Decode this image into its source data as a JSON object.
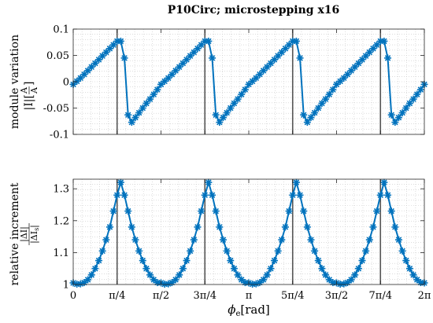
{
  "chart_data": [
    {
      "type": "line",
      "title": "P10Circ; microstepping x16",
      "ylabel": "module variation",
      "ylabel_formula": {
        "prefix": "|I|[",
        "numerator": "A",
        "denominator": "A",
        "suffix": "]"
      },
      "xlim": [
        0,
        6.2832
      ],
      "ylim": [
        -0.1,
        0.1
      ],
      "yticks": [
        {
          "value": -0.1,
          "label": "-0.1"
        },
        {
          "value": -0.05,
          "label": "-0.05"
        },
        {
          "value": 0,
          "label": "0"
        },
        {
          "value": 0.05,
          "label": "0.05"
        },
        {
          "value": 0.1,
          "label": "0.1"
        }
      ],
      "grid": "minor-dotted",
      "vlines_x": [
        0.7854,
        2.3562,
        3.927,
        5.4978
      ],
      "marker": "asterisk",
      "color": "#0072BD",
      "period_points": [
        -0.005,
        0.001,
        0.007,
        0.014,
        0.021,
        0.028,
        0.035,
        0.042,
        0.049,
        0.056,
        0.063,
        0.07,
        0.077,
        0.077,
        0.045,
        -0.063,
        -0.077,
        -0.068,
        -0.059,
        -0.05,
        -0.041,
        -0.033,
        -0.024,
        -0.015
      ],
      "periods": 4
    },
    {
      "type": "line",
      "ylabel": "relative increment",
      "ylabel_formula": {
        "numerator": "|ΔI|",
        "denominator": "|ΔI",
        "denominator_sub": "s",
        "denominator_suffix": "|"
      },
      "xlabel": "ϕe[rad]",
      "xlabel_main": "ϕ",
      "xlabel_sub": "e",
      "xlabel_unit": "[rad]",
      "xlim": [
        0,
        6.2832
      ],
      "ylim": [
        1,
        1.33
      ],
      "yticks": [
        {
          "value": 1,
          "label": "1"
        },
        {
          "value": 1.1,
          "label": "1.1"
        },
        {
          "value": 1.2,
          "label": "1.2"
        },
        {
          "value": 1.3,
          "label": "1.3"
        }
      ],
      "xticks": [
        {
          "value": 0,
          "label": "0"
        },
        {
          "value": 0.7854,
          "label": "π/4"
        },
        {
          "value": 1.5708,
          "label": "π/2"
        },
        {
          "value": 2.3562,
          "label": "3π/4"
        },
        {
          "value": 3.1416,
          "label": "π"
        },
        {
          "value": 3.927,
          "label": "5π/4"
        },
        {
          "value": 4.7124,
          "label": "3π/2"
        },
        {
          "value": 5.4978,
          "label": "7π/4"
        },
        {
          "value": 6.2832,
          "label": "2π"
        }
      ],
      "grid": "minor-dotted",
      "vlines_x": [
        0.7854,
        2.3562,
        3.927,
        5.4978
      ],
      "marker": "asterisk",
      "color": "#0072BD",
      "period_points": [
        1.005,
        1.001,
        1.002,
        1.006,
        1.015,
        1.03,
        1.05,
        1.075,
        1.105,
        1.14,
        1.18,
        1.23,
        1.28,
        1.32,
        1.28,
        1.23,
        1.18,
        1.14,
        1.105,
        1.075,
        1.05,
        1.03,
        1.015,
        1.006
      ],
      "periods": 4
    }
  ]
}
